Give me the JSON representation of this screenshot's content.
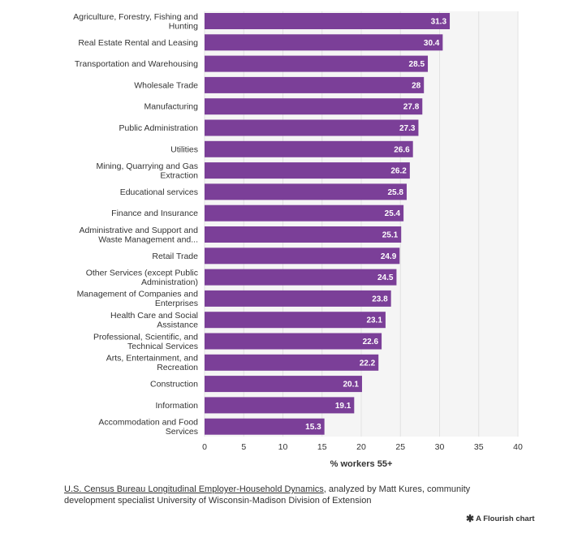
{
  "chart_data": {
    "type": "bar",
    "orientation": "horizontal",
    "categories": [
      [
        "Agriculture, Forestry, Fishing and",
        "Hunting"
      ],
      [
        "Real Estate Rental and Leasing"
      ],
      [
        "Transportation and Warehousing"
      ],
      [
        "Wholesale Trade"
      ],
      [
        "Manufacturing"
      ],
      [
        "Public Administration"
      ],
      [
        "Utilities"
      ],
      [
        "Mining, Quarrying and Gas",
        "Extraction"
      ],
      [
        "Educational services"
      ],
      [
        "Finance and Insurance"
      ],
      [
        "Administrative and Support and",
        "Waste Management and..."
      ],
      [
        "Retail Trade"
      ],
      [
        "Other Services (except Public",
        "Administration)"
      ],
      [
        "Management of Companies and",
        "Enterprises"
      ],
      [
        "Health Care and Social",
        "Assistance"
      ],
      [
        "Professional, Scientific, and",
        "Technical Services"
      ],
      [
        "Arts, Entertainment, and",
        "Recreation"
      ],
      [
        "Construction"
      ],
      [
        "Information"
      ],
      [
        "Accommodation and Food",
        "Services"
      ]
    ],
    "values": [
      31.3,
      30.4,
      28.5,
      28,
      27.8,
      27.3,
      26.6,
      26.2,
      25.8,
      25.4,
      25.1,
      24.9,
      24.5,
      23.8,
      23.1,
      22.6,
      22.2,
      20.1,
      19.1,
      15.3
    ],
    "value_labels": [
      "31.3",
      "30.4",
      "28.5",
      "28",
      "27.8",
      "27.3",
      "26.6",
      "26.2",
      "25.8",
      "25.4",
      "25.1",
      "24.9",
      "24.5",
      "23.8",
      "23.1",
      "22.6",
      "22.2",
      "20.1",
      "19.1",
      "15.3"
    ],
    "xlabel": "% workers 55+",
    "xlim": [
      0,
      40
    ],
    "xticks": [
      0,
      5,
      10,
      15,
      20,
      25,
      30,
      35,
      40
    ],
    "grid": true,
    "bar_color": "#7b3f98",
    "plot_background": "#f5f5f5"
  },
  "footer": {
    "source_link": "U.S. Census Bureau Longitudinal Employer-Household Dynamics",
    "source_rest": ", analyzed by Matt Kures, community development specialist University of Wisconsin-Madison Division of Extension",
    "credit_icon": "asterisk-icon",
    "credit": "A Flourish chart"
  }
}
